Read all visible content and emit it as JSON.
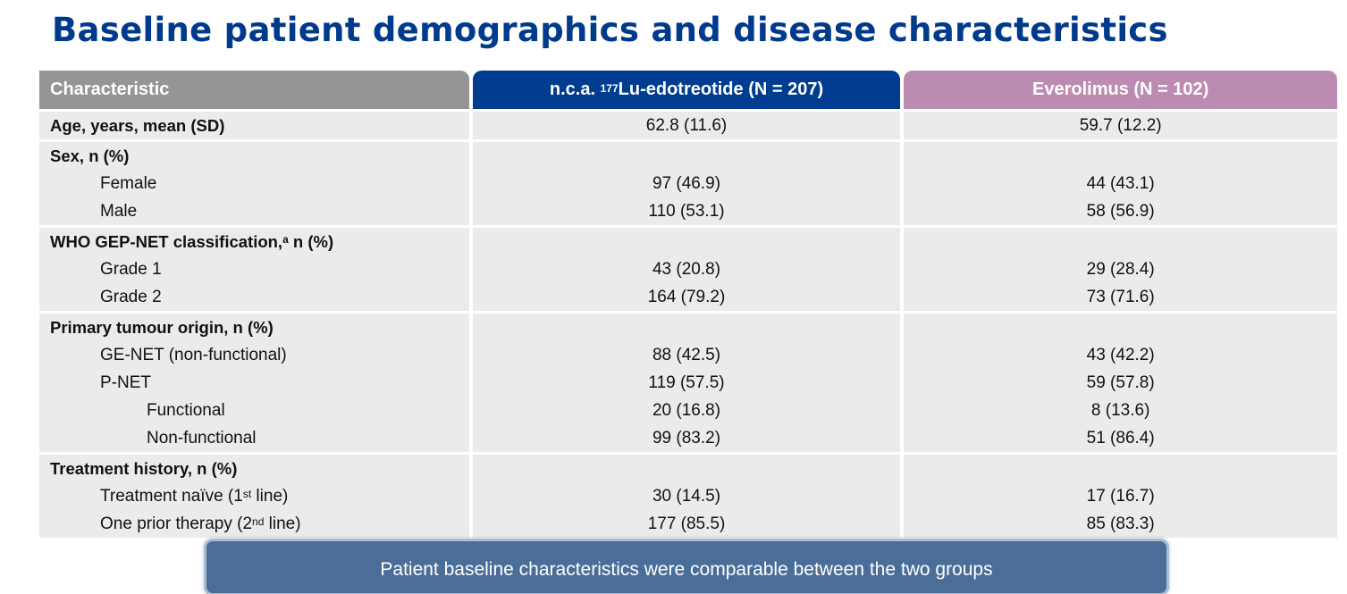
{
  "title": "Baseline patient demographics and disease characteristics",
  "header": {
    "characteristic": "Characteristic",
    "col1_prefix": "n.c.a. ",
    "col1_sup": "177",
    "col1_rest": "Lu-edotreotide (N = 207)",
    "col2": "Everolimus (N = 102)"
  },
  "age": {
    "label": "Age, years, mean (SD)",
    "v1": "62.8 (11.6)",
    "v2": "59.7 (12.2)"
  },
  "sex": {
    "label": "Sex, n (%)",
    "female": {
      "label": "Female",
      "v1": "97 (46.9)",
      "v2": "44 (43.1)"
    },
    "male": {
      "label": "Male",
      "v1": "110 (53.1)",
      "v2": "58 (56.9)"
    }
  },
  "who": {
    "label_prefix": "WHO GEP-NET classification,",
    "label_sup": "a",
    "label_suffix": " n (%)",
    "grade1": {
      "label": "Grade 1",
      "v1": "43 (20.8)",
      "v2": "29 (28.4)"
    },
    "grade2": {
      "label": "Grade 2",
      "v1": "164 (79.2)",
      "v2": "73 (71.6)"
    }
  },
  "origin": {
    "label": "Primary tumour origin, n (%)",
    "genet": {
      "label": "GE-NET (non-functional)",
      "v1": "88 (42.5)",
      "v2": "43 (42.2)"
    },
    "pnet": {
      "label": "P-NET",
      "v1": "119 (57.5)",
      "v2": "59 (57.8)"
    },
    "functional": {
      "label": "Functional",
      "v1": "20 (16.8)",
      "v2": "8 (13.6)"
    },
    "nonfunctional": {
      "label": "Non-functional",
      "v1": "99 (83.2)",
      "v2": "51 (86.4)"
    }
  },
  "history": {
    "label": "Treatment history, n (%)",
    "naive": {
      "pre": "Treatment naïve (1",
      "sup": "st",
      "post": " line)",
      "v1": "30 (14.5)",
      "v2": "17 (16.7)"
    },
    "prior": {
      "pre": "One prior therapy (2",
      "sup": "nd",
      "post": " line)",
      "v1": "177 (85.5)",
      "v2": "85 (83.3)"
    }
  },
  "callout": "Patient baseline characteristics were comparable between the two groups",
  "colors": {
    "title": "#003a8c",
    "lu_header": "#003c8f",
    "evero_header": "#bc8bb2",
    "char_header": "#959595",
    "row_bg": "#ebebeb",
    "callout_bg": "#4b6e99"
  }
}
